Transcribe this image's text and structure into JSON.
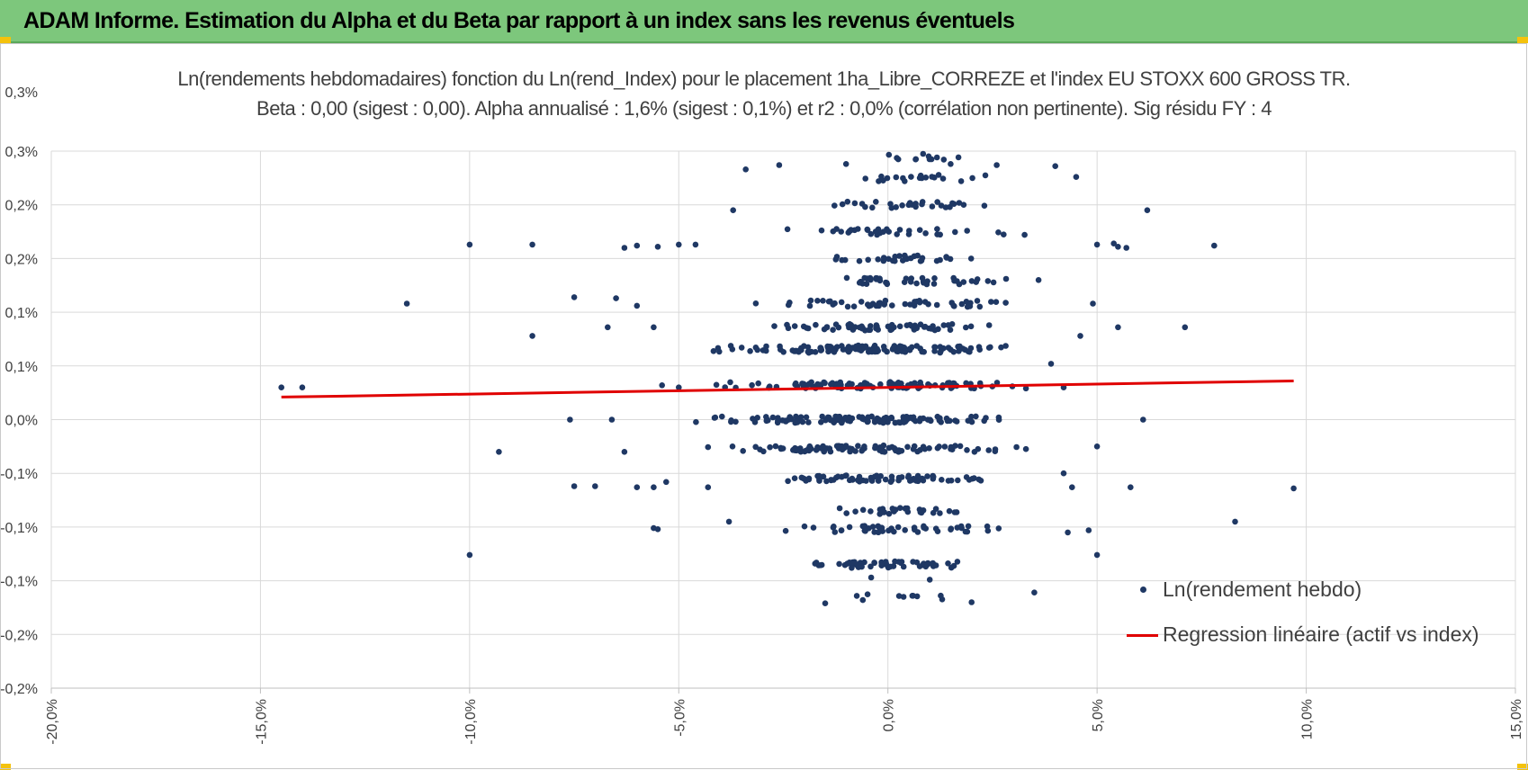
{
  "banner": {
    "title": "ADAM Informe. Estimation du Alpha et du Beta par rapport à un index sans les revenus éventuels",
    "color": "#7dc77c"
  },
  "chart_data": {
    "type": "scatter",
    "title": "Ln(rendements hebdomadaires) fonction du Ln(rend_Index) pour le placement 1ha_Libre_CORREZE et l'index EU STOXX 600 GROSS TR.",
    "subtitle": "Beta : 0,00 (sigest : 0,00). Alpha annualisé : 1,6% (sigest : 0,1%) et r2 : 0,0% (corrélation non pertinente). Sig résidu FY : 4",
    "xlabel": "",
    "ylabel": "",
    "xlim": [
      -20,
      15
    ],
    "ylim": [
      -0.25,
      0.25
    ],
    "x_tick_values": [
      -20,
      -15,
      -10,
      -5,
      0,
      5,
      10,
      15
    ],
    "x_tick_labels": [
      "-20,0%",
      "-15,0%",
      "-10,0%",
      "-5,0%",
      "0,0%",
      "5,0%",
      "10,0%",
      "15,0%"
    ],
    "y_tick_values": [
      -0.25,
      -0.2,
      -0.15,
      -0.1,
      -0.05,
      0,
      0.05,
      0.1,
      0.15,
      0.2,
      0.25
    ],
    "y_tick_labels": [
      "-0,2%",
      "-0,2%",
      "-0,1%",
      "-0,1%",
      "-0,1%",
      "0,0%",
      "0,1%",
      "0,1%",
      "0,2%",
      "0,2%",
      "0,3%"
    ],
    "top_label": "0,3%",
    "grid": true,
    "legend_position": "bottom-right",
    "series": [
      {
        "name": "Ln(rendement hebdo)",
        "type": "scatter",
        "color": "#1f3864",
        "bands": [
          {
            "y": 0.0,
            "xmin": -4.6,
            "xmax": 3.2,
            "count": 130
          },
          {
            "y": 0.032,
            "xmin": -3.8,
            "xmax": 3.0,
            "count": 110
          },
          {
            "y": -0.027,
            "xmin": -4.0,
            "xmax": 3.0,
            "count": 95
          },
          {
            "y": 0.066,
            "xmin": -4.5,
            "xmax": 3.2,
            "count": 100
          },
          {
            "y": 0.065,
            "xmin": -4.5,
            "xmax": 3.2,
            "count": 25
          },
          {
            "y": 0.086,
            "xmin": -3.0,
            "xmax": 2.8,
            "count": 65
          },
          {
            "y": 0.108,
            "xmin": -3.0,
            "xmax": 3.0,
            "count": 50
          },
          {
            "y": 0.129,
            "xmin": -2.6,
            "xmax": 3.0,
            "count": 40
          },
          {
            "y": 0.15,
            "xmin": -2.0,
            "xmax": 2.0,
            "count": 30
          },
          {
            "y": 0.175,
            "xmin": -3.0,
            "xmax": 3.0,
            "count": 35
          },
          {
            "y": 0.2,
            "xmin": -2.0,
            "xmax": 2.5,
            "count": 30
          },
          {
            "y": 0.225,
            "xmin": -1.0,
            "xmax": 2.5,
            "count": 20
          },
          {
            "y": 0.245,
            "xmin": -0.5,
            "xmax": 2.0,
            "count": 12
          },
          {
            "y": -0.055,
            "xmin": -2.8,
            "xmax": 2.5,
            "count": 70
          },
          {
            "y": -0.085,
            "xmin": -1.5,
            "xmax": 2.2,
            "count": 30
          },
          {
            "y": -0.102,
            "xmin": -2.6,
            "xmax": 3.0,
            "count": 45
          },
          {
            "y": -0.135,
            "xmin": -2.2,
            "xmax": 2.3,
            "count": 55
          },
          {
            "y": -0.165,
            "xmin": -1.6,
            "xmax": 2.5,
            "count": 8
          }
        ],
        "outliers": [
          [
            -14.5,
            0.03
          ],
          [
            -14.0,
            0.03
          ],
          [
            -11.5,
            0.108
          ],
          [
            -10.0,
            0.163
          ],
          [
            -8.5,
            0.163
          ],
          [
            -8.5,
            0.078
          ],
          [
            -9.3,
            -0.03
          ],
          [
            -10.0,
            -0.126
          ],
          [
            -7.6,
            0.0
          ],
          [
            -6.6,
            0.0
          ],
          [
            -7.5,
            0.114
          ],
          [
            -6.5,
            0.113
          ],
          [
            -6.0,
            0.106
          ],
          [
            -6.7,
            0.086
          ],
          [
            -5.6,
            0.086
          ],
          [
            -7.5,
            -0.062
          ],
          [
            -7.0,
            -0.062
          ],
          [
            -6.3,
            -0.03
          ],
          [
            -6.0,
            -0.063
          ],
          [
            -5.6,
            -0.063
          ],
          [
            -5.6,
            -0.101
          ],
          [
            -5.5,
            -0.102
          ],
          [
            -5.3,
            -0.058
          ],
          [
            -5.0,
            0.03
          ],
          [
            -4.3,
            -0.063
          ],
          [
            -3.7,
            0.195
          ],
          [
            -3.4,
            0.233
          ],
          [
            -2.6,
            0.237
          ],
          [
            -3.8,
            -0.095
          ],
          [
            -6.3,
            0.16
          ],
          [
            -6.0,
            0.162
          ],
          [
            -5.5,
            0.161
          ],
          [
            -5.0,
            0.163
          ],
          [
            -4.6,
            0.163
          ],
          [
            -5.4,
            0.032
          ],
          [
            -1.0,
            0.238
          ],
          [
            1.5,
            0.238
          ],
          [
            2.6,
            0.237
          ],
          [
            4.0,
            0.236
          ],
          [
            4.5,
            0.226
          ],
          [
            6.2,
            0.195
          ],
          [
            7.8,
            0.162
          ],
          [
            5.0,
            0.163
          ],
          [
            5.5,
            0.161
          ],
          [
            5.4,
            0.164
          ],
          [
            5.7,
            0.16
          ],
          [
            4.9,
            0.108
          ],
          [
            5.5,
            0.086
          ],
          [
            7.1,
            0.086
          ],
          [
            3.6,
            0.13
          ],
          [
            6.1,
            0.0
          ],
          [
            5.0,
            -0.025
          ],
          [
            4.2,
            0.03
          ],
          [
            3.9,
            0.052
          ],
          [
            4.2,
            -0.05
          ],
          [
            5.8,
            -0.063
          ],
          [
            9.7,
            -0.064
          ],
          [
            8.3,
            -0.095
          ],
          [
            5.0,
            -0.126
          ],
          [
            3.5,
            -0.161
          ],
          [
            4.3,
            -0.105
          ],
          [
            4.8,
            -0.103
          ],
          [
            4.4,
            -0.063
          ],
          [
            4.6,
            0.078
          ],
          [
            -1.5,
            -0.171
          ],
          [
            -0.6,
            -0.168
          ],
          [
            0.6,
            -0.164
          ],
          [
            2.0,
            -0.17
          ],
          [
            -0.4,
            -0.147
          ],
          [
            1.0,
            -0.149
          ]
        ]
      },
      {
        "name": "Regression linéaire (actif vs index)",
        "type": "line",
        "color": "#e00000",
        "x": [
          -14.5,
          9.7
        ],
        "y": [
          0.021,
          0.036
        ]
      }
    ]
  }
}
